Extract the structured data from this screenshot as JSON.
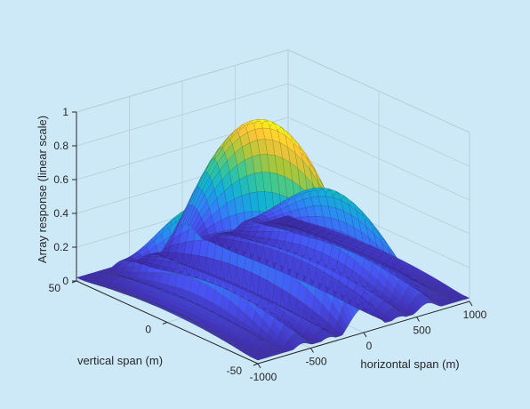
{
  "colors": {
    "background": "#cde9f8",
    "box_lines": "#bcd0dc",
    "grid": "#b8ccd8",
    "axis": "#262626",
    "mesh_edge": "#1c1c1c",
    "colormap": "parula"
  },
  "chart_data": {
    "type": "surface",
    "title": "",
    "xlabel": "horizontal span (m)",
    "ylabel": "vertical span (m)",
    "zlabel": "Array response (linear scale)",
    "x_ticks": [
      -1000,
      -500,
      0,
      500,
      1000
    ],
    "x_tick_labels": [
      "-1000",
      "-500",
      "0",
      "500",
      "1000"
    ],
    "y_ticks": [
      50,
      0,
      -50
    ],
    "y_tick_labels": [
      "50",
      "0",
      "-50"
    ],
    "z_ticks": [
      0,
      0.2,
      0.4,
      0.6,
      0.8,
      1
    ],
    "z_tick_labels": [
      "0",
      "0.2",
      "0.4",
      "0.6",
      "0.8",
      "1"
    ],
    "xlim": [
      -1000,
      1000
    ],
    "ylim": [
      -50,
      50
    ],
    "zlim": [
      0,
      1
    ],
    "grid": true,
    "peak": {
      "x": 0,
      "y": 0,
      "z": 1.0
    },
    "main_lobe_ridge_z_at_y_edges": 0.15,
    "side_lobes": [
      {
        "x": -580,
        "z_max": 0.6
      },
      {
        "x": 600,
        "z_max": 0.48
      }
    ],
    "colorscale": "parula"
  }
}
